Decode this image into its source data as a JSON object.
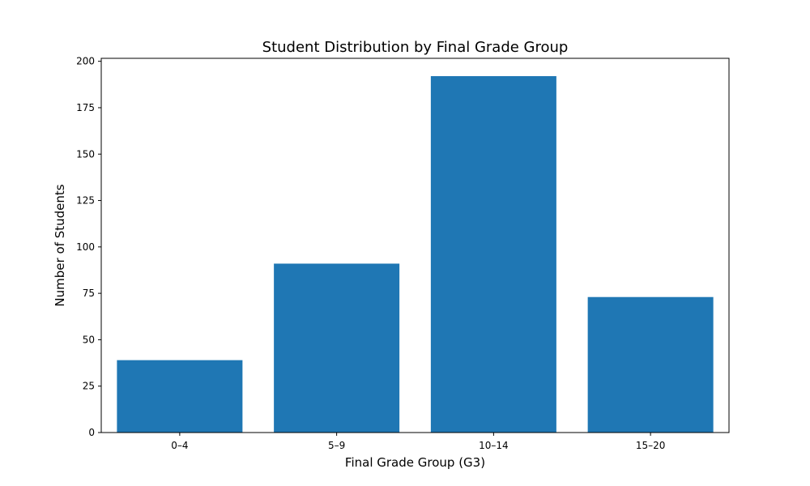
{
  "chart_data": {
    "type": "bar",
    "title": "Student Distribution by Final Grade Group",
    "xlabel": "Final Grade Group (G3)",
    "ylabel": "Number of Students",
    "categories": [
      "0–4",
      "5–9",
      "10–14",
      "15–20"
    ],
    "values": [
      39,
      91,
      192,
      73
    ],
    "ylim": [
      0,
      201.6
    ],
    "yticks": [
      0,
      25,
      50,
      75,
      100,
      125,
      150,
      175,
      200
    ],
    "bar_color": "#1f77b4",
    "grid": false,
    "legend": "none"
  }
}
